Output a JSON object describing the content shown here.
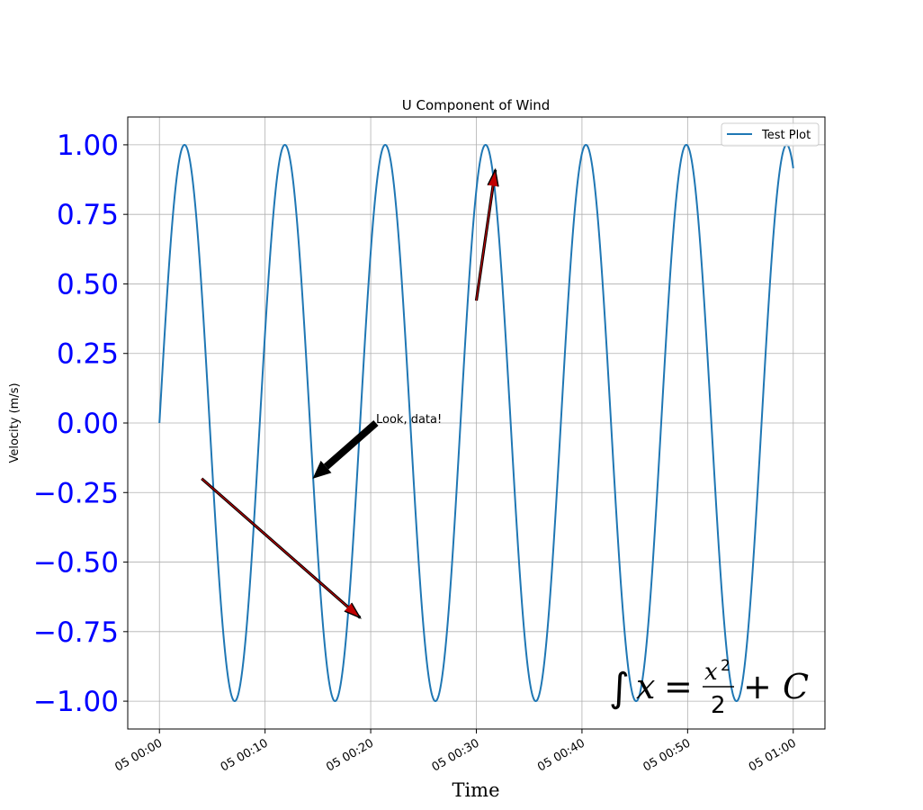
{
  "chart_data": {
    "type": "line",
    "title": "U Component of Wind",
    "xlabel": "Time",
    "ylabel": "Velocity (m/s)",
    "xlabel_color": "#8b0000",
    "ytick_color": "#0000ff",
    "line_color": "#1f77b4",
    "grid": true,
    "legend_position": "top-right",
    "x_range_minutes": [
      -3,
      63
    ],
    "ylim": [
      -1.1,
      1.1
    ],
    "x_ticks": [
      0,
      10,
      20,
      30,
      40,
      50,
      60
    ],
    "x_tick_labels": [
      "05 00:00",
      "05 00:10",
      "05 00:20",
      "05 00:30",
      "05 00:40",
      "05 00:50",
      "05 01:00"
    ],
    "y_ticks": [
      1.0,
      0.75,
      0.5,
      0.25,
      0.0,
      -0.25,
      -0.5,
      -0.75,
      -1.0
    ],
    "y_tick_labels": [
      "1.00",
      "0.75",
      "0.50",
      "0.25",
      "0.00",
      "−0.25",
      "−0.50",
      "−0.75",
      "−1.00"
    ],
    "series": [
      {
        "name": "Test Plot",
        "function": "sin",
        "period_minutes": 9.5,
        "x_start_minutes": 0,
        "x_end_minutes": 60
      }
    ],
    "annotations": [
      {
        "text": "Look, data!",
        "text_at": [
          20.5,
          0.0
        ],
        "arrow_from": [
          20.5,
          0.0
        ],
        "arrow_to": [
          14.5,
          -0.2
        ],
        "style": "thick-black"
      },
      {
        "text": "",
        "arrow_from": [
          30.0,
          0.44
        ],
        "arrow_to": [
          31.8,
          0.91
        ],
        "style": "thin-red"
      },
      {
        "text": "",
        "arrow_from": [
          4.0,
          -0.2
        ],
        "arrow_to": [
          19.0,
          -0.7
        ],
        "style": "thin-red"
      }
    ],
    "math_label": {
      "integral": "∫",
      "var": "x",
      "equals": "=",
      "numerator": "x",
      "exponent": "2",
      "denominator": "2",
      "plus": "+",
      "constant": "C"
    }
  }
}
